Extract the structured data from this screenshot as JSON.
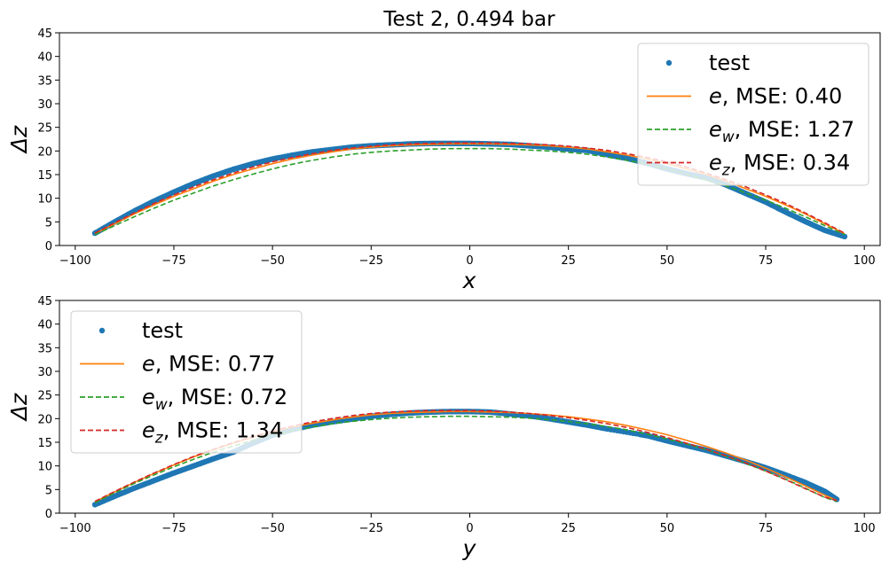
{
  "chart_data": [
    {
      "type": "line",
      "title": "Test 2, 0.494 bar",
      "xlabel": "x",
      "ylabel": "Δz",
      "xlim": [
        -104,
        104
      ],
      "ylim": [
        0,
        45
      ],
      "xticks": [
        -100,
        -75,
        -50,
        -25,
        0,
        25,
        50,
        75,
        100
      ],
      "yticks": [
        0,
        5,
        10,
        15,
        20,
        25,
        30,
        35,
        40,
        45
      ],
      "grid": false,
      "legend_position": "top-right",
      "legend": [
        {
          "symbol": "",
          "sub": "",
          "text": "test"
        },
        {
          "symbol": "e",
          "sub": "",
          "text": ", MSE: 0.40"
        },
        {
          "symbol": "e",
          "sub": "w",
          "text": ", MSE: 1.27"
        },
        {
          "symbol": "e",
          "sub": "z",
          "text": ", MSE: 0.34"
        }
      ],
      "series": [
        {
          "style": "dots",
          "color": "#1f77b4",
          "x": [
            -95,
            -90,
            -85,
            -80,
            -75,
            -70,
            -65,
            -60,
            -55,
            -50,
            -45,
            -40,
            -35,
            -30,
            -25,
            -20,
            -15,
            -10,
            -5,
            0,
            5,
            10,
            15,
            20,
            25,
            30,
            35,
            40,
            45,
            50,
            55,
            60,
            65,
            70,
            75,
            80,
            85,
            90,
            95
          ],
          "y": [
            2.6,
            5.0,
            7.3,
            9.4,
            11.3,
            13.1,
            14.7,
            16.1,
            17.3,
            18.3,
            19.1,
            19.8,
            20.3,
            20.8,
            21.1,
            21.3,
            21.5,
            21.6,
            21.6,
            21.6,
            21.5,
            21.4,
            21.1,
            20.8,
            20.4,
            20.1,
            19.2,
            18.4,
            17.4,
            16.2,
            15.2,
            14.3,
            12.8,
            11.0,
            9.2,
            7.1,
            5.1,
            3.2,
            1.9
          ]
        },
        {
          "style": "solid",
          "color": "#ff7f0e",
          "x": [
            -95,
            -90,
            -85,
            -80,
            -75,
            -70,
            -65,
            -60,
            -55,
            -50,
            -45,
            -40,
            -35,
            -30,
            -25,
            -20,
            -15,
            -10,
            -5,
            0,
            5,
            10,
            15,
            20,
            25,
            30,
            35,
            40,
            45,
            50,
            55,
            60,
            65,
            70,
            75,
            80,
            85,
            90,
            95
          ],
          "y": [
            2.5,
            4.6,
            6.7,
            8.6,
            10.4,
            12.0,
            13.6,
            15.0,
            16.2,
            17.3,
            18.3,
            19.1,
            19.8,
            20.4,
            20.8,
            21.1,
            21.3,
            21.4,
            21.5,
            21.5,
            21.5,
            21.4,
            21.3,
            21.1,
            20.8,
            20.4,
            19.8,
            19.1,
            18.3,
            17.3,
            16.2,
            15.0,
            13.6,
            12.0,
            10.4,
            8.6,
            6.7,
            4.6,
            2.5
          ]
        },
        {
          "style": "dashed",
          "color": "#2ca02c",
          "x": [
            -95,
            -90,
            -85,
            -80,
            -75,
            -70,
            -65,
            -60,
            -55,
            -50,
            -45,
            -40,
            -35,
            -30,
            -25,
            -20,
            -15,
            -10,
            -5,
            0,
            5,
            10,
            15,
            20,
            25,
            30,
            35,
            40,
            45,
            50,
            55,
            60,
            65,
            70,
            75,
            80,
            85,
            90,
            95
          ],
          "y": [
            2.3,
            4.2,
            6.1,
            7.9,
            9.6,
            11.1,
            12.6,
            13.9,
            15.1,
            16.2,
            17.2,
            18.0,
            18.7,
            19.3,
            19.7,
            20.0,
            20.2,
            20.4,
            20.5,
            20.5,
            20.5,
            20.4,
            20.2,
            20.0,
            19.7,
            19.3,
            18.7,
            18.0,
            17.2,
            16.2,
            15.1,
            13.9,
            12.6,
            11.1,
            9.6,
            7.9,
            6.1,
            4.2,
            2.3
          ]
        },
        {
          "style": "dashed",
          "color": "#d62728",
          "x": [
            -95,
            -90,
            -85,
            -80,
            -75,
            -70,
            -65,
            -60,
            -55,
            -50,
            -45,
            -40,
            -35,
            -30,
            -25,
            -20,
            -15,
            -10,
            -5,
            0,
            5,
            10,
            15,
            20,
            25,
            30,
            35,
            40,
            45,
            50,
            55,
            60,
            65,
            70,
            75,
            80,
            85,
            90,
            95
          ],
          "y": [
            2.6,
            4.8,
            6.9,
            8.9,
            10.7,
            12.4,
            13.9,
            15.3,
            16.6,
            17.7,
            18.6,
            19.4,
            20.1,
            20.6,
            21.0,
            21.3,
            21.5,
            21.6,
            21.7,
            21.7,
            21.7,
            21.6,
            21.5,
            21.3,
            21.0,
            20.6,
            20.1,
            19.4,
            18.6,
            17.7,
            16.6,
            15.3,
            13.9,
            12.4,
            10.7,
            8.9,
            6.9,
            4.8,
            2.6
          ]
        }
      ]
    },
    {
      "type": "line",
      "title": "",
      "xlabel": "y",
      "ylabel": "Δz",
      "xlim": [
        -104,
        104
      ],
      "ylim": [
        0,
        45
      ],
      "xticks": [
        -100,
        -75,
        -50,
        -25,
        0,
        25,
        50,
        75,
        100
      ],
      "yticks": [
        0,
        5,
        10,
        15,
        20,
        25,
        30,
        35,
        40,
        45
      ],
      "grid": false,
      "legend_position": "top-left",
      "legend": [
        {
          "symbol": "",
          "sub": "",
          "text": "test"
        },
        {
          "symbol": "e",
          "sub": "",
          "text": ", MSE: 0.77"
        },
        {
          "symbol": "e",
          "sub": "w",
          "text": ", MSE: 0.72"
        },
        {
          "symbol": "e",
          "sub": "z",
          "text": ", MSE: 1.34"
        }
      ],
      "series": [
        {
          "style": "dots",
          "color": "#1f77b4",
          "x": [
            -95,
            -90,
            -85,
            -80,
            -75,
            -70,
            -65,
            -60,
            -55,
            -50,
            -45,
            -40,
            -35,
            -30,
            -25,
            -20,
            -15,
            -10,
            -5,
            0,
            5,
            10,
            15,
            20,
            25,
            30,
            35,
            43,
            45,
            50,
            55,
            60,
            65,
            70,
            75,
            80,
            85,
            90,
            93
          ],
          "y": [
            1.8,
            3.6,
            5.3,
            6.9,
            8.5,
            10.0,
            11.5,
            12.9,
            14.8,
            16.5,
            17.7,
            18.6,
            19.3,
            19.9,
            20.5,
            20.9,
            21.2,
            21.4,
            21.5,
            21.5,
            21.4,
            21.0,
            20.6,
            20.0,
            19.3,
            18.6,
            17.8,
            16.7,
            16.4,
            15.3,
            14.3,
            13.3,
            12.1,
            10.9,
            9.6,
            8.1,
            6.5,
            4.6,
            2.9
          ]
        },
        {
          "style": "solid",
          "color": "#ff7f0e",
          "x": [
            -95,
            -90,
            -85,
            -80,
            -75,
            -70,
            -65,
            -60,
            -55,
            -50,
            -45,
            -40,
            -35,
            -30,
            -25,
            -20,
            -15,
            -10,
            -5,
            0,
            5,
            10,
            15,
            20,
            25,
            30,
            35,
            40,
            45,
            50,
            55,
            60,
            65,
            70,
            75,
            80,
            85,
            90,
            93
          ],
          "y": [
            2.4,
            4.5,
            6.5,
            8.4,
            10.2,
            11.9,
            13.4,
            14.8,
            16.1,
            17.2,
            18.2,
            19.0,
            19.7,
            20.3,
            20.8,
            21.1,
            21.3,
            21.4,
            21.5,
            21.5,
            21.4,
            21.3,
            21.1,
            20.8,
            20.4,
            19.9,
            19.3,
            18.5,
            17.6,
            16.6,
            15.4,
            14.1,
            12.7,
            11.2,
            9.5,
            7.7,
            5.8,
            3.8,
            2.7
          ]
        },
        {
          "style": "dashed",
          "color": "#2ca02c",
          "x": [
            -95,
            -90,
            -85,
            -80,
            -75,
            -70,
            -65,
            -60,
            -55,
            -50,
            -45,
            -40,
            -35,
            -30,
            -25,
            -20,
            -15,
            -10,
            -5,
            0,
            5,
            10,
            15,
            20,
            25,
            30,
            35,
            40,
            45,
            50,
            55,
            60,
            65,
            70,
            75,
            80,
            85,
            90,
            93
          ],
          "y": [
            2.2,
            4.3,
            6.3,
            8.1,
            9.8,
            11.4,
            12.9,
            14.2,
            15.4,
            16.5,
            17.4,
            18.2,
            18.9,
            19.4,
            19.8,
            20.1,
            20.3,
            20.4,
            20.5,
            20.5,
            20.4,
            20.3,
            20.1,
            19.8,
            19.4,
            18.9,
            18.3,
            17.6,
            16.7,
            15.7,
            14.6,
            13.4,
            12.0,
            10.5,
            8.9,
            7.2,
            5.3,
            3.3,
            2.5
          ]
        },
        {
          "style": "dashed",
          "color": "#d62728",
          "x": [
            -95,
            -90,
            -85,
            -80,
            -75,
            -70,
            -65,
            -60,
            -55,
            -50,
            -45,
            -40,
            -35,
            -30,
            -25,
            -20,
            -15,
            -10,
            -5,
            0,
            5,
            10,
            15,
            20,
            25,
            30,
            35,
            40,
            45,
            50,
            55,
            60,
            65,
            70,
            75,
            80,
            85,
            90,
            93
          ],
          "y": [
            2.5,
            4.6,
            6.6,
            8.5,
            10.3,
            12.0,
            13.5,
            14.9,
            16.2,
            17.4,
            18.4,
            19.3,
            20.0,
            20.6,
            21.1,
            21.4,
            21.6,
            21.7,
            21.7,
            21.7,
            21.6,
            21.4,
            21.1,
            20.7,
            20.2,
            19.6,
            18.9,
            18.1,
            17.1,
            16.0,
            14.8,
            13.5,
            12.1,
            10.6,
            8.9,
            7.1,
            5.2,
            3.4,
            2.7
          ]
        }
      ]
    }
  ]
}
